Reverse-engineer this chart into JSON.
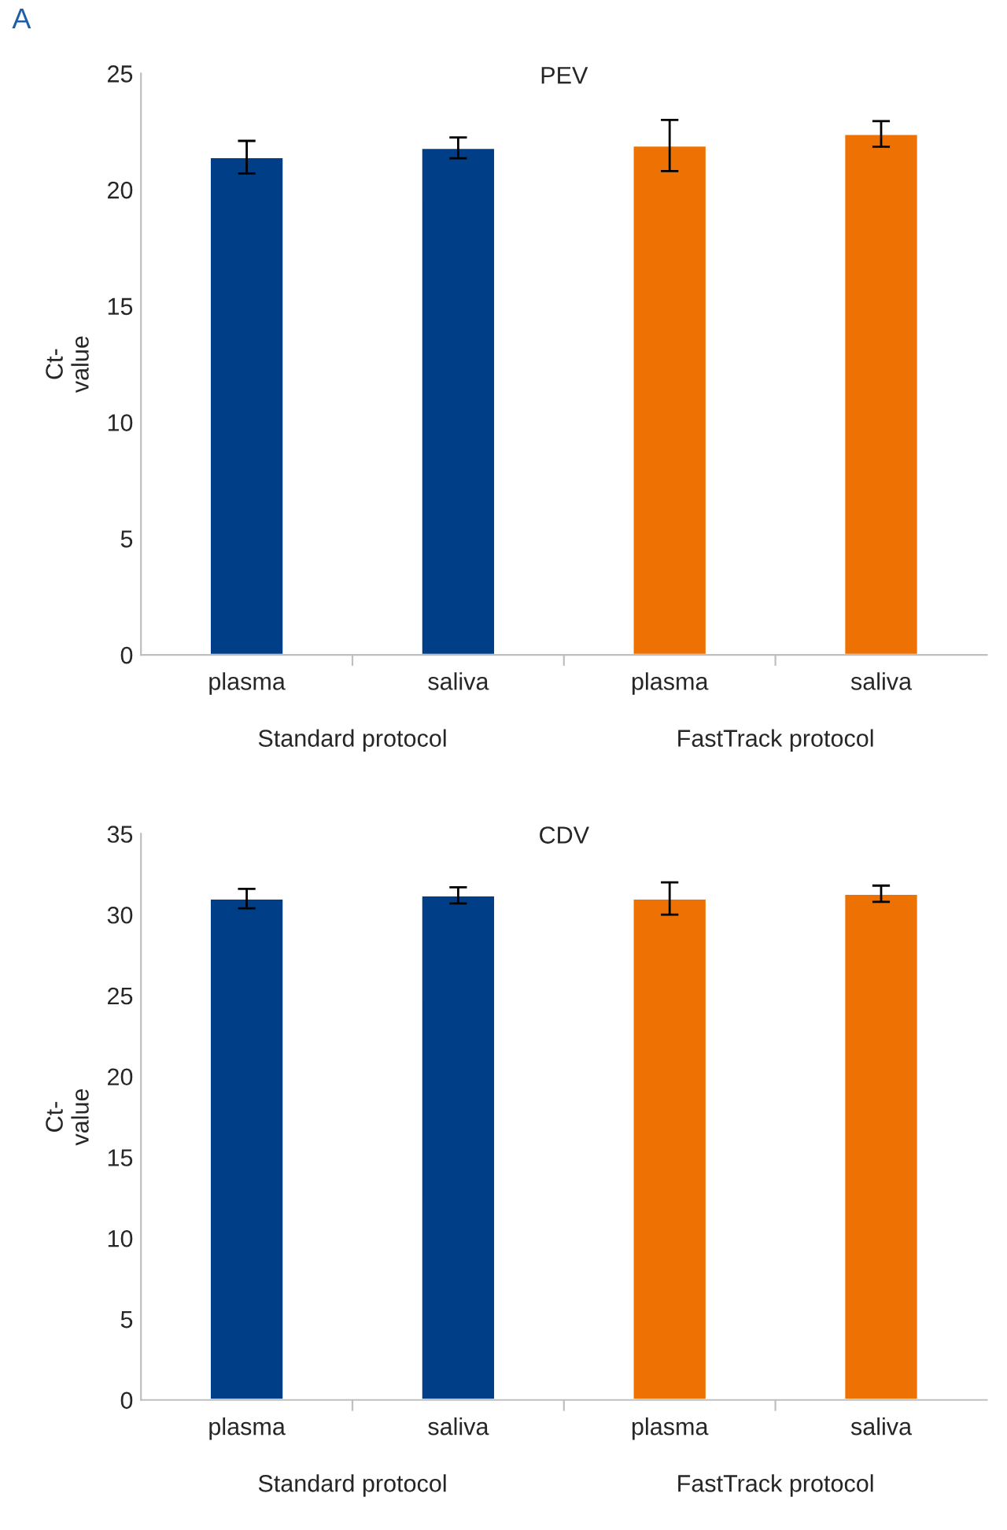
{
  "chart_data": [
    {
      "type": "bar",
      "title": "PEV",
      "ylabel": "Ct-\nvalue",
      "categories": [
        "plasma",
        "saliva",
        "plasma",
        "saliva"
      ],
      "values": [
        21.4,
        21.8,
        21.9,
        22.4
      ],
      "errors": [
        0.7,
        0.45,
        1.1,
        0.55
      ],
      "colors": [
        "#003f87",
        "#003f87",
        "#ee7203",
        "#ee7203"
      ],
      "ylim": [
        0,
        25
      ],
      "yticks": [
        0,
        5,
        10,
        15,
        20,
        25
      ],
      "grid": false,
      "legend": false,
      "annotations": [
        "Standard protocol",
        "FastTrack protocol",
        "A"
      ]
    },
    {
      "type": "bar",
      "title": "CDV",
      "ylabel": "Ct-\nvalue",
      "categories": [
        "plasma",
        "saliva",
        "plasma",
        "saliva"
      ],
      "values": [
        31.0,
        31.2,
        31.0,
        31.3
      ],
      "errors": [
        0.6,
        0.5,
        1.0,
        0.5
      ],
      "colors": [
        "#003f87",
        "#003f87",
        "#ee7203",
        "#ee7203"
      ],
      "ylim": [
        0,
        35
      ],
      "yticks": [
        0,
        5,
        10,
        15,
        20,
        25,
        30,
        35
      ],
      "grid": false,
      "legend": false,
      "annotations": [
        "Standard protocol",
        "FastTrack protocol"
      ]
    }
  ]
}
